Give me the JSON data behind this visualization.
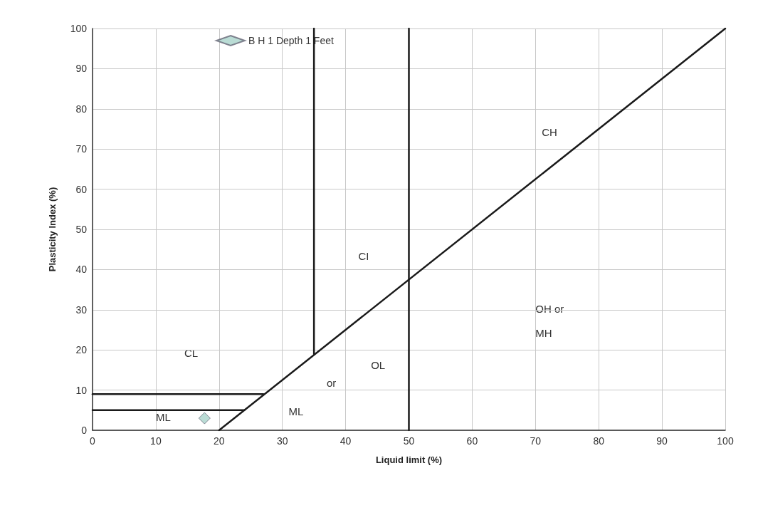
{
  "chart_data": {
    "type": "line",
    "xlabel": "Liquid limit (%)",
    "ylabel": "Plasticity Index (%)",
    "xlim": [
      0,
      100
    ],
    "xticks": [
      0,
      10,
      20,
      30,
      40,
      50,
      60,
      70,
      80,
      90,
      100
    ],
    "ylim": [
      0,
      100
    ],
    "yticks": [
      0,
      10,
      20,
      30,
      40,
      50,
      60,
      70,
      80,
      90,
      100
    ],
    "grid": true,
    "legend": "top",
    "series": [
      {
        "color": "#1a1a1a",
        "marker": "none",
        "x": [
          20,
          100
        ],
        "values": [
          0,
          100
        ]
      },
      {
        "color": "#1a1a1a",
        "marker": "none",
        "x": [
          35,
          35
        ],
        "values": [
          19,
          100
        ]
      },
      {
        "color": "#1a1a1a",
        "marker": "none",
        "x": [
          50,
          50
        ],
        "values": [
          0,
          100
        ]
      },
      {
        "color": "#1a1a1a",
        "marker": "none",
        "x": [
          0,
          27
        ],
        "values": [
          9,
          9
        ]
      },
      {
        "color": "#1a1a1a",
        "marker": "none",
        "x": [
          0,
          24
        ],
        "values": [
          5,
          5
        ]
      },
      {
        "type": "scatter",
        "name": "B H 1 Depth 1 Feet",
        "color": "#a9d3cb",
        "marker": "diamond",
        "x": [
          17.7
        ],
        "values": [
          3
        ]
      }
    ],
    "annotations": [
      "CH",
      "CI",
      "CL",
      "OL",
      "or",
      "ML",
      "ML",
      "OH or",
      "MH"
    ]
  }
}
